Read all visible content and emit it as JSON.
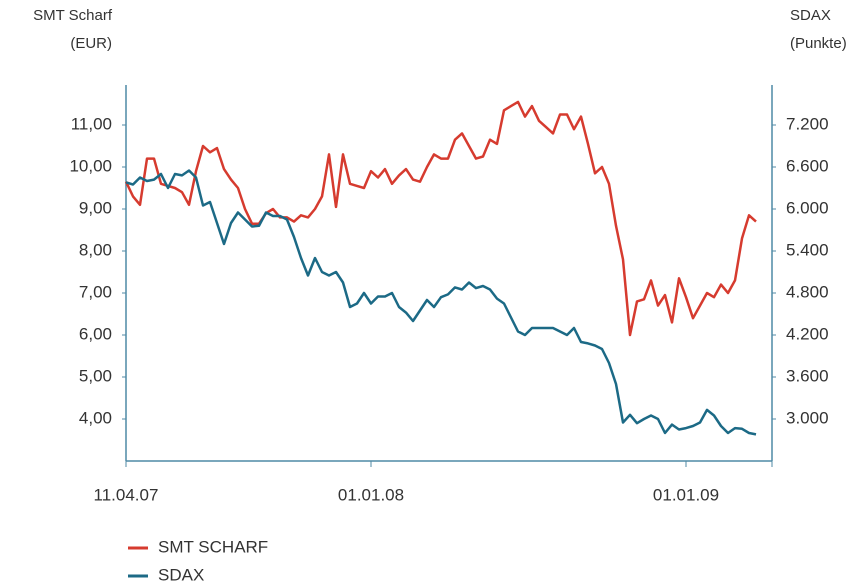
{
  "chart_data": {
    "type": "line",
    "ylabel": [
      "SMT Scharf",
      "(EUR)"
    ],
    "y2label": [
      "SDAX",
      "(Punkte)"
    ],
    "categories": [
      "11.04.07",
      null,
      null,
      null,
      null,
      null,
      null,
      null,
      null,
      null,
      null,
      null,
      null,
      null,
      null,
      null,
      null,
      null,
      null,
      null,
      null,
      null,
      null,
      null,
      null,
      null,
      null,
      null,
      null,
      null,
      null,
      null,
      null,
      null,
      null,
      "01.01.08",
      null,
      null,
      null,
      null,
      null,
      null,
      null,
      null,
      null,
      null,
      null,
      null,
      null,
      null,
      null,
      null,
      null,
      null,
      null,
      null,
      null,
      null,
      null,
      null,
      null,
      null,
      null,
      null,
      null,
      null,
      null,
      null,
      null,
      null,
      null,
      null,
      null,
      null,
      null,
      null,
      null,
      null,
      null,
      null,
      "01.01.09",
      null,
      null,
      null,
      null,
      null,
      null,
      null,
      null,
      null,
      null
    ],
    "series": [
      {
        "name": "SMT SCHARF",
        "color": "#d63b2f",
        "axis": "y",
        "values": [
          9.65,
          9.3,
          9.1,
          10.2,
          10.2,
          9.6,
          9.55,
          9.5,
          9.4,
          9.1,
          9.9,
          10.5,
          10.35,
          10.45,
          9.95,
          9.7,
          9.5,
          9.0,
          8.65,
          8.65,
          8.9,
          9.0,
          8.8,
          8.8,
          8.7,
          8.85,
          8.8,
          9.0,
          9.3,
          10.3,
          9.05,
          10.3,
          9.6,
          9.55,
          9.5,
          9.9,
          9.75,
          9.95,
          9.6,
          9.8,
          9.95,
          9.7,
          9.65,
          10.0,
          10.3,
          10.2,
          10.2,
          10.65,
          10.8,
          10.5,
          10.2,
          10.25,
          10.65,
          10.55,
          11.35,
          11.45,
          11.55,
          11.2,
          11.45,
          11.1,
          10.95,
          10.8,
          11.25,
          11.25,
          10.9,
          11.2,
          10.55,
          9.85,
          10.0,
          9.6,
          8.6,
          7.8,
          6.0,
          6.8,
          6.85,
          7.3,
          6.7,
          6.95,
          6.3,
          7.35,
          6.9,
          6.4,
          6.7,
          7.0,
          6.9,
          7.2,
          7.0,
          7.3,
          8.3,
          8.85,
          8.7
        ]
      },
      {
        "name": "SDAX",
        "color": "#1c6a86",
        "axis": "y2",
        "values": [
          6380,
          6350,
          6450,
          6400,
          6420,
          6500,
          6300,
          6500,
          6480,
          6550,
          6450,
          6050,
          6100,
          5800,
          5500,
          5800,
          5950,
          5850,
          5750,
          5760,
          5950,
          5900,
          5900,
          5850,
          5600,
          5300,
          5050,
          5300,
          5100,
          5050,
          5100,
          4950,
          4600,
          4650,
          4800,
          4650,
          4750,
          4750,
          4800,
          4600,
          4520,
          4400,
          4550,
          4700,
          4600,
          4740,
          4780,
          4880,
          4850,
          4950,
          4870,
          4900,
          4850,
          4720,
          4650,
          4450,
          4250,
          4200,
          4300,
          4300,
          4300,
          4300,
          4250,
          4200,
          4300,
          4100,
          4080,
          4050,
          4000,
          3800,
          3500,
          2950,
          3060,
          2940,
          3000,
          3050,
          3000,
          2800,
          2920,
          2850,
          2870,
          2900,
          2950,
          3130,
          3050,
          2900,
          2800,
          2870,
          2860,
          2800,
          2780
        ]
      }
    ],
    "ylim": [
      3,
      12
    ],
    "yticks": [
      {
        "value": 4,
        "label": "4,00"
      },
      {
        "value": 5,
        "label": "5,00"
      },
      {
        "value": 6,
        "label": "6,00"
      },
      {
        "value": 7,
        "label": "7,00"
      },
      {
        "value": 8,
        "label": "8,00"
      },
      {
        "value": 9,
        "label": "9,00"
      },
      {
        "value": 10,
        "label": "10,00"
      },
      {
        "value": 11,
        "label": "11,00"
      }
    ],
    "y2lim": [
      2400,
      7800
    ],
    "y2ticks": [
      {
        "value": 3000,
        "label": "3.000"
      },
      {
        "value": 3600,
        "label": "3.600"
      },
      {
        "value": 4200,
        "label": "4.200"
      },
      {
        "value": 4800,
        "label": "4.800"
      },
      {
        "value": 5400,
        "label": "5.400"
      },
      {
        "value": 6000,
        "label": "6.000"
      },
      {
        "value": 6600,
        "label": "6.600"
      },
      {
        "value": 7200,
        "label": "7.200"
      }
    ],
    "grid": false,
    "legend": "bottom-left"
  }
}
